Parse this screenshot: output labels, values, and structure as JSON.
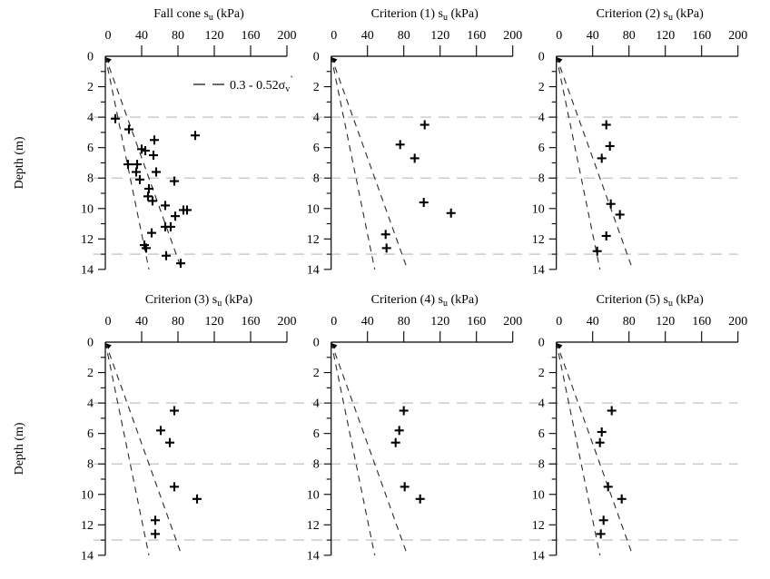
{
  "chart_data": {
    "type": "scatter",
    "layout": "2x3 grid of depth profiles, top x-axis, inverted y-axis",
    "marker": "+",
    "colors": {
      "axis": "#000000",
      "marker": "#000000",
      "envelope": "#2a2a2a",
      "gridline": "#bbbbbb"
    },
    "axes": {
      "xlim": [
        0,
        200
      ],
      "xticks": [
        0,
        40,
        80,
        120,
        160,
        200
      ],
      "ylim": [
        0,
        14
      ],
      "yticks_labeled": [
        0,
        2,
        4,
        6,
        8,
        10,
        12,
        14
      ],
      "y_minor_step": 1,
      "ylabel": "Depth (m)",
      "y_inverted": true,
      "grid_depths": [
        4,
        8,
        13
      ],
      "grid_style": "dashed"
    },
    "envelope": {
      "label_text": "0.3 - 0.52σv`",
      "label_pre": "0.3 - 0.52σ",
      "label_sub": "v",
      "label_post": "`",
      "style": "dashed",
      "su_at_0m": [
        0,
        0
      ],
      "su_at_14m": [
        48,
        84
      ]
    },
    "subplots": [
      {
        "id": "fall-cone",
        "title_text": "Fall cone su (kPa)",
        "title_pre": "Fall cone s",
        "title_sub": "u",
        "title_post": " (kPa)",
        "show_legend": true,
        "points": [
          [
            11,
            4.1
          ],
          [
            26,
            4.8
          ],
          [
            99,
            5.2
          ],
          [
            54,
            5.5
          ],
          [
            40,
            6.1
          ],
          [
            44,
            6.2
          ],
          [
            53,
            6.5
          ],
          [
            25,
            7.1
          ],
          [
            35,
            7.1
          ],
          [
            34,
            7.6
          ],
          [
            56,
            7.6
          ],
          [
            38,
            8.1
          ],
          [
            76,
            8.2
          ],
          [
            48,
            8.7
          ],
          [
            47,
            9.2
          ],
          [
            52,
            9.5
          ],
          [
            66,
            9.8
          ],
          [
            86,
            10.1
          ],
          [
            90,
            10.1
          ],
          [
            77,
            10.5
          ],
          [
            66,
            11.2
          ],
          [
            72,
            11.2
          ],
          [
            51,
            11.6
          ],
          [
            43,
            12.4
          ],
          [
            45,
            12.6
          ],
          [
            67,
            13.1
          ],
          [
            83,
            13.6
          ]
        ]
      },
      {
        "id": "criterion-1",
        "title_text": "Criterion (1) su (kPa)",
        "title_pre": "Criterion (1) s",
        "title_sub": "u",
        "title_post": " (kPa)",
        "show_legend": false,
        "points": [
          [
            103,
            4.5
          ],
          [
            76,
            5.8
          ],
          [
            92,
            6.7
          ],
          [
            102,
            9.6
          ],
          [
            132,
            10.3
          ],
          [
            60,
            11.7
          ],
          [
            61,
            12.6
          ]
        ]
      },
      {
        "id": "criterion-2",
        "title_text": "Criterion (2) su (kPa)",
        "title_pre": "Criterion (2) s",
        "title_sub": "u",
        "title_post": " (kPa)",
        "show_legend": false,
        "points": [
          [
            55,
            4.5
          ],
          [
            59,
            5.9
          ],
          [
            50,
            6.7
          ],
          [
            60,
            9.7
          ],
          [
            70,
            10.4
          ],
          [
            55,
            11.8
          ],
          [
            45,
            12.8
          ]
        ]
      },
      {
        "id": "criterion-3",
        "title_text": "Criterion (3) su (kPa)",
        "title_pre": "Criterion (3) s",
        "title_sub": "u",
        "title_post": " (kPa)",
        "show_legend": false,
        "points": [
          [
            76,
            4.5
          ],
          [
            61,
            5.8
          ],
          [
            71,
            6.6
          ],
          [
            76,
            9.5
          ],
          [
            101,
            10.3
          ],
          [
            55,
            11.7
          ],
          [
            55,
            12.6
          ]
        ]
      },
      {
        "id": "criterion-4",
        "title_text": "Criterion (4) su (kPa)",
        "title_pre": "Criterion (4) s",
        "title_sub": "u",
        "title_post": " (kPa)",
        "show_legend": false,
        "points": [
          [
            80,
            4.5
          ],
          [
            75,
            5.8
          ],
          [
            71,
            6.6
          ],
          [
            81,
            9.5
          ],
          [
            98,
            10.3
          ]
        ]
      },
      {
        "id": "criterion-5",
        "title_text": "Criterion (5) su (kPa)",
        "title_pre": "Criterion (5) s",
        "title_sub": "u",
        "title_post": " (kPa)",
        "show_legend": false,
        "points": [
          [
            61,
            4.5
          ],
          [
            50,
            5.9
          ],
          [
            48,
            6.6
          ],
          [
            57,
            9.5
          ],
          [
            72,
            10.3
          ],
          [
            52,
            11.7
          ],
          [
            49,
            12.6
          ]
        ]
      }
    ]
  }
}
